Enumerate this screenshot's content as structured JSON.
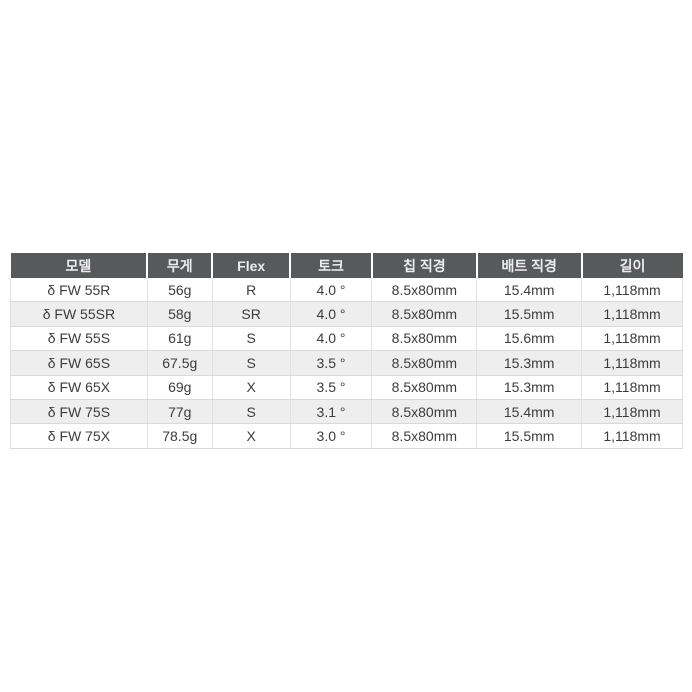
{
  "chart_data": {
    "type": "table",
    "columns": [
      "모델",
      "무게",
      "Flex",
      "토크",
      "칩 직경",
      "배트 직경",
      "길이"
    ],
    "rows": [
      [
        "δ FW 55R",
        "56g",
        "R",
        "4.0 °",
        "8.5x80mm",
        "15.4mm",
        "1,118mm"
      ],
      [
        "δ FW 55SR",
        "58g",
        "SR",
        "4.0 °",
        "8.5x80mm",
        "15.5mm",
        "1,118mm"
      ],
      [
        "δ FW 55S",
        "61g",
        "S",
        "4.0 °",
        "8.5x80mm",
        "15.6mm",
        "1,118mm"
      ],
      [
        "δ FW 65S",
        "67.5g",
        "S",
        "3.5 °",
        "8.5x80mm",
        "15.3mm",
        "1,118mm"
      ],
      [
        "δ FW 65X",
        "69g",
        "X",
        "3.5 °",
        "8.5x80mm",
        "15.3mm",
        "1,118mm"
      ],
      [
        "δ FW 75S",
        "77g",
        "S",
        "3.1 °",
        "8.5x80mm",
        "15.4mm",
        "1,118mm"
      ],
      [
        "δ FW 75X",
        "78.5g",
        "X",
        "3.0 °",
        "8.5x80mm",
        "15.5mm",
        "1,118mm"
      ]
    ],
    "legend": null,
    "grid": "on",
    "layout_hint": "single centered spec table on white background"
  },
  "colors": {
    "page_bg": "#ffffff",
    "header_bg": "#58595b",
    "header_text": "#ededed",
    "row_odd_bg": "#ffffff",
    "row_even_bg": "#eeeeee",
    "cell_text": "#3c3c3e",
    "grid_line_vertical": "#e2e2e2",
    "grid_line_horizontal": "#d9d9d9"
  }
}
